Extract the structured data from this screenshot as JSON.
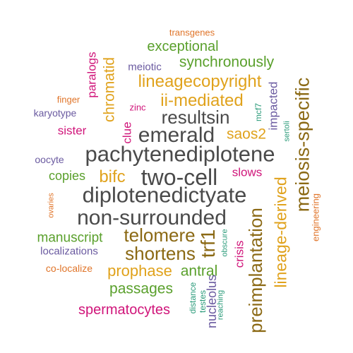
{
  "colors": {
    "gray": "#4a4a4a",
    "olive": "#8b6914",
    "gold": "#e0a21c",
    "green": "#5aa02c",
    "magenta": "#d0157a",
    "purple": "#6a5aa0",
    "orange": "#e0752a",
    "teal": "#2b9b7a"
  },
  "words": [
    {
      "id": "transgenes",
      "text": "transgenes",
      "weight": 1,
      "color": "orange"
    },
    {
      "id": "exceptional",
      "text": "exceptional",
      "weight": 3,
      "color": "green"
    },
    {
      "id": "meiotic",
      "text": "meiotic",
      "weight": 1,
      "color": "purple"
    },
    {
      "id": "synchronously",
      "text": "synchronously",
      "weight": 3,
      "color": "green"
    },
    {
      "id": "paralogs",
      "text": "paralogs",
      "weight": 2,
      "color": "magenta"
    },
    {
      "id": "chromatid",
      "text": "chromatid",
      "weight": 3,
      "color": "gold"
    },
    {
      "id": "lineagecopyright",
      "text": "lineagecopyright",
      "weight": 4,
      "color": "gold"
    },
    {
      "id": "finger",
      "text": "finger",
      "weight": 1,
      "color": "orange"
    },
    {
      "id": "ii-mediated",
      "text": "ii-mediated",
      "weight": 4,
      "color": "gold"
    },
    {
      "id": "zinc",
      "text": "zinc",
      "weight": 1,
      "color": "magenta"
    },
    {
      "id": "mcf7",
      "text": "mcf7",
      "weight": 1,
      "color": "teal"
    },
    {
      "id": "impacted",
      "text": "impacted",
      "weight": 2,
      "color": "purple"
    },
    {
      "id": "karyotype",
      "text": "karyotype",
      "weight": 1,
      "color": "purple"
    },
    {
      "id": "resultsin",
      "text": "resultsin",
      "weight": 5,
      "color": "gray"
    },
    {
      "id": "sertoli",
      "text": "sertoli",
      "weight": 1,
      "color": "teal"
    },
    {
      "id": "meiosis-specific",
      "text": "meiosis-specific",
      "weight": 5,
      "color": "olive"
    },
    {
      "id": "sister",
      "text": "sister",
      "weight": 2,
      "color": "magenta"
    },
    {
      "id": "clue",
      "text": "clue",
      "weight": 2,
      "color": "magenta"
    },
    {
      "id": "emerald",
      "text": "emerald",
      "weight": 6,
      "color": "gray"
    },
    {
      "id": "saos2",
      "text": "saos2",
      "weight": 3,
      "color": "gold"
    },
    {
      "id": "oocyte",
      "text": "oocyte",
      "weight": 1,
      "color": "purple"
    },
    {
      "id": "pachytenediplotene",
      "text": "pachytenediplotene",
      "weight": 7,
      "color": "gray"
    },
    {
      "id": "copies",
      "text": "copies",
      "weight": 2,
      "color": "green"
    },
    {
      "id": "bifc",
      "text": "bifc",
      "weight": 4,
      "color": "gold"
    },
    {
      "id": "two-cell",
      "text": "two-cell",
      "weight": 6,
      "color": "gray"
    },
    {
      "id": "slows",
      "text": "slows",
      "weight": 2,
      "color": "magenta"
    },
    {
      "id": "ovaries",
      "text": "ovaries",
      "weight": 1,
      "color": "orange"
    },
    {
      "id": "diplotenedictyate",
      "text": "diplotenedictyate",
      "weight": 7,
      "color": "gray"
    },
    {
      "id": "lineage-derived",
      "text": "lineage-derived",
      "weight": 4,
      "color": "gold"
    },
    {
      "id": "engineering",
      "text": "engineering",
      "weight": 1,
      "color": "orange"
    },
    {
      "id": "non-surrounded",
      "text": "non-surrounded",
      "weight": 7,
      "color": "gray"
    },
    {
      "id": "preimplantation",
      "text": "preimplantation",
      "weight": 5,
      "color": "olive"
    },
    {
      "id": "manuscript",
      "text": "manuscript",
      "weight": 3,
      "color": "green"
    },
    {
      "id": "telomere",
      "text": "telomere",
      "weight": 5,
      "color": "olive"
    },
    {
      "id": "trf1",
      "text": "trf1",
      "weight": 5,
      "color": "olive"
    },
    {
      "id": "obscure",
      "text": "obscure",
      "weight": 1,
      "color": "teal"
    },
    {
      "id": "crisis",
      "text": "crisis",
      "weight": 2,
      "color": "magenta"
    },
    {
      "id": "localizations",
      "text": "localizations",
      "weight": 2,
      "color": "purple"
    },
    {
      "id": "shortens",
      "text": "shortens",
      "weight": 5,
      "color": "olive"
    },
    {
      "id": "co-localize",
      "text": "co-localize",
      "weight": 1,
      "color": "orange"
    },
    {
      "id": "prophase",
      "text": "prophase",
      "weight": 3,
      "color": "gold"
    },
    {
      "id": "antral",
      "text": "antral",
      "weight": 3,
      "color": "green"
    },
    {
      "id": "passages",
      "text": "passages",
      "weight": 3,
      "color": "green"
    },
    {
      "id": "distance",
      "text": "distance",
      "weight": 1,
      "color": "teal"
    },
    {
      "id": "testes",
      "text": "testes",
      "weight": 1,
      "color": "teal"
    },
    {
      "id": "nucleolus",
      "text": "nucleolus",
      "weight": 2,
      "color": "purple"
    },
    {
      "id": "reaching",
      "text": "reaching",
      "weight": 1,
      "color": "teal"
    },
    {
      "id": "spermatocytes",
      "text": "spermatocytes",
      "weight": 3,
      "color": "magenta"
    }
  ]
}
